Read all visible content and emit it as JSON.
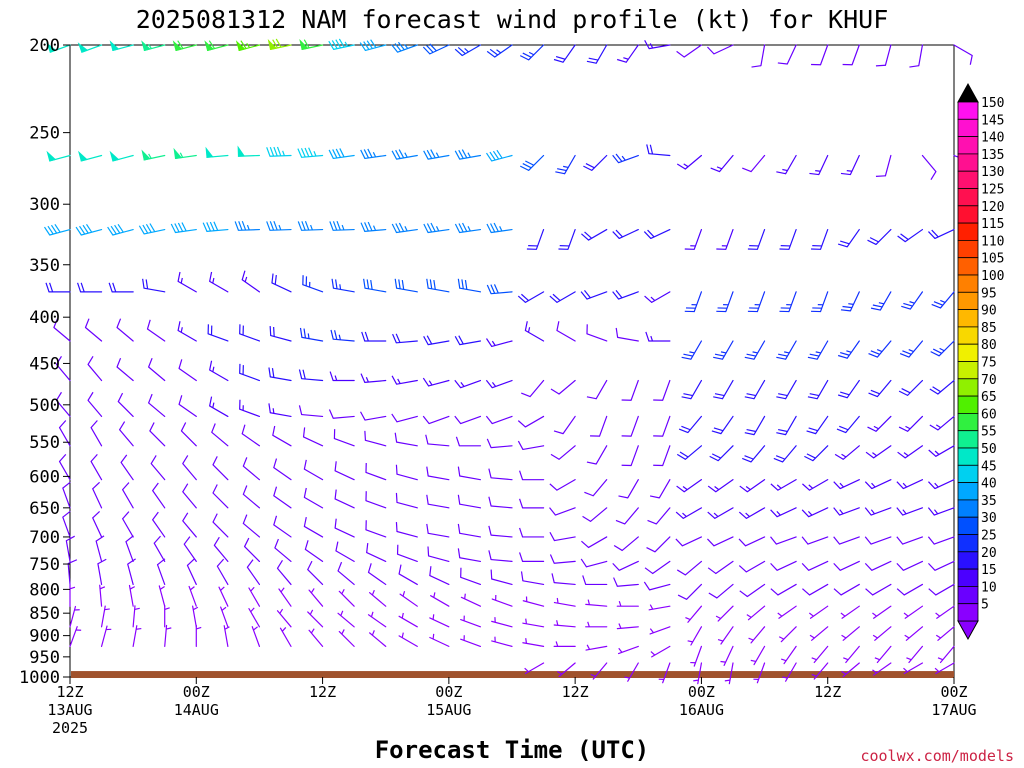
{
  "title": "2025081312 NAM forecast wind profile (kt) for KHUF",
  "credit": "coolwx.com/models",
  "chart_data": {
    "type": "wind-barb-timeheight",
    "title": "2025081312 NAM forecast wind profile (kt) for KHUF",
    "xlabel": "Forecast Time (UTC)",
    "ylabel": "",
    "units": "kt",
    "y_ticks": [
      200,
      250,
      300,
      350,
      400,
      450,
      500,
      550,
      600,
      650,
      700,
      750,
      800,
      850,
      900,
      950,
      1000
    ],
    "ylim": [
      1000,
      200
    ],
    "x_ticks": [
      {
        "hour": 0,
        "lines": [
          "12Z",
          "13AUG",
          "2025"
        ]
      },
      {
        "hour": 12,
        "lines": [
          "00Z",
          "14AUG"
        ]
      },
      {
        "hour": 24,
        "lines": [
          "12Z"
        ]
      },
      {
        "hour": 36,
        "lines": [
          "00Z",
          "15AUG"
        ]
      },
      {
        "hour": 48,
        "lines": [
          "12Z"
        ]
      },
      {
        "hour": 60,
        "lines": [
          "00Z",
          "16AUG"
        ]
      },
      {
        "hour": 72,
        "lines": [
          "12Z"
        ]
      },
      {
        "hour": 84,
        "lines": [
          "00Z",
          "17AUG"
        ]
      }
    ],
    "xlim": [
      0,
      84
    ],
    "time_step_hours": 3,
    "colorbar": {
      "levels": [
        5,
        10,
        15,
        20,
        25,
        30,
        35,
        40,
        45,
        50,
        55,
        60,
        65,
        70,
        75,
        80,
        85,
        90,
        95,
        100,
        105,
        110,
        115,
        120,
        125,
        130,
        135,
        140,
        145,
        150
      ],
      "colors": [
        "#8a00ff",
        "#6a00ff",
        "#4b00ff",
        "#2a10ff",
        "#1030ff",
        "#0050ff",
        "#0080ff",
        "#00a8ff",
        "#00d0f0",
        "#00e8c8",
        "#10f090",
        "#30f040",
        "#50f000",
        "#90f000",
        "#c8f000",
        "#f0f000",
        "#f8d800",
        "#ffb800",
        "#ff9800",
        "#ff8000",
        "#ff6000",
        "#ff4000",
        "#ff2000",
        "#ff1030",
        "#ff1050",
        "#ff1070",
        "#ff1090",
        "#ff10b0",
        "#ff10d0",
        "#ff10f0"
      ]
    },
    "surface_color": "#a0522d",
    "levels": [
      {
        "p": 200,
        "speeds": [
          49,
          50,
          52,
          55,
          58,
          62,
          66,
          72,
          62,
          45,
          40,
          34,
          30,
          26,
          24,
          23,
          20,
          18,
          17,
          14,
          12,
          12,
          11,
          10,
          10,
          9,
          9,
          8,
          8
        ],
        "dirs": [
          250,
          250,
          255,
          255,
          255,
          255,
          255,
          258,
          258,
          258,
          255,
          250,
          245,
          240,
          235,
          225,
          215,
          210,
          215,
          260,
          235,
          245,
          190,
          205,
          200,
          200,
          195,
          190,
          120
        ]
      },
      {
        "p": 265,
        "speeds": [
          50,
          51,
          52,
          53,
          53,
          51,
          49,
          47,
          43,
          40,
          37,
          35,
          34,
          33,
          40,
          30,
          26,
          22,
          24,
          20,
          15,
          13,
          12,
          15,
          14,
          14,
          12,
          10,
          10
        ],
        "dirs": [
          255,
          255,
          255,
          258,
          262,
          265,
          268,
          268,
          265,
          262,
          262,
          260,
          260,
          260,
          255,
          225,
          210,
          225,
          250,
          275,
          230,
          220,
          220,
          210,
          205,
          205,
          195,
          140,
          110
        ]
      },
      {
        "p": 320,
        "speeds": [
          40,
          41,
          42,
          42,
          40,
          38,
          36,
          35,
          34,
          34,
          34,
          34,
          33,
          33,
          33,
          22,
          22,
          20,
          18,
          18,
          16,
          16,
          18,
          18,
          18,
          20,
          20,
          20,
          20
        ],
        "dirs": [
          255,
          255,
          255,
          258,
          262,
          265,
          268,
          268,
          268,
          268,
          265,
          262,
          262,
          262,
          262,
          200,
          200,
          240,
          245,
          245,
          200,
          200,
          200,
          200,
          200,
          215,
          225,
          235,
          245
        ]
      },
      {
        "p": 375,
        "speeds": [
          20,
          21,
          20,
          18,
          17,
          16,
          16,
          20,
          24,
          26,
          28,
          28,
          30,
          30,
          28,
          18,
          20,
          18,
          18,
          16,
          24,
          25,
          25,
          25,
          25,
          25,
          25,
          25,
          25
        ],
        "dirs": [
          270,
          270,
          270,
          280,
          300,
          300,
          305,
          295,
          290,
          280,
          280,
          280,
          280,
          280,
          265,
          240,
          240,
          250,
          250,
          240,
          200,
          200,
          200,
          200,
          200,
          205,
          210,
          215,
          220
        ]
      },
      {
        "p": 425,
        "speeds": [
          12,
          12,
          12,
          12,
          14,
          18,
          20,
          22,
          24,
          24,
          22,
          20,
          20,
          20,
          16,
          14,
          12,
          12,
          12,
          14,
          24,
          25,
          25,
          25,
          25,
          25,
          25,
          25,
          25
        ],
        "dirs": [
          310,
          310,
          310,
          305,
          300,
          290,
          290,
          285,
          280,
          275,
          270,
          265,
          260,
          260,
          255,
          300,
          300,
          290,
          280,
          270,
          210,
          210,
          210,
          210,
          210,
          215,
          220,
          220,
          225
        ]
      },
      {
        "p": 470,
        "speeds": [
          10,
          10,
          11,
          11,
          12,
          15,
          18,
          18,
          18,
          16,
          14,
          14,
          14,
          16,
          14,
          12,
          12,
          10,
          10,
          10,
          22,
          22,
          22,
          22,
          22,
          22,
          20,
          18,
          18
        ],
        "dirs": [
          320,
          320,
          310,
          310,
          305,
          300,
          290,
          280,
          275,
          270,
          265,
          260,
          255,
          250,
          250,
          220,
          230,
          210,
          200,
          200,
          210,
          210,
          210,
          210,
          210,
          215,
          220,
          225,
          230
        ]
      },
      {
        "p": 515,
        "speeds": [
          10,
          10,
          10,
          11,
          12,
          14,
          14,
          14,
          12,
          12,
          10,
          10,
          10,
          10,
          12,
          12,
          10,
          8,
          8,
          10,
          20,
          20,
          20,
          20,
          20,
          18,
          16,
          16,
          16
        ],
        "dirs": [
          320,
          320,
          315,
          310,
          305,
          300,
          290,
          280,
          275,
          265,
          260,
          255,
          250,
          250,
          250,
          240,
          215,
          200,
          200,
          200,
          220,
          215,
          210,
          210,
          215,
          220,
          225,
          225,
          230
        ]
      },
      {
        "p": 555,
        "speeds": [
          10,
          10,
          10,
          10,
          10,
          10,
          10,
          10,
          10,
          10,
          10,
          10,
          10,
          10,
          10,
          10,
          8,
          8,
          8,
          8,
          18,
          18,
          18,
          18,
          18,
          16,
          16,
          16,
          15
        ],
        "dirs": [
          330,
          330,
          320,
          315,
          315,
          310,
          305,
          300,
          295,
          290,
          285,
          280,
          275,
          270,
          265,
          260,
          230,
          210,
          200,
          200,
          230,
          225,
          220,
          220,
          225,
          230,
          235,
          235,
          240
        ]
      },
      {
        "p": 605,
        "speeds": [
          10,
          10,
          10,
          10,
          10,
          10,
          10,
          10,
          9,
          9,
          9,
          9,
          9,
          9,
          9,
          9,
          8,
          8,
          8,
          8,
          15,
          15,
          15,
          16,
          16,
          15,
          15,
          15,
          15
        ],
        "dirs": [
          330,
          330,
          325,
          320,
          320,
          315,
          310,
          305,
          300,
          295,
          290,
          285,
          280,
          280,
          275,
          270,
          240,
          220,
          210,
          210,
          235,
          235,
          235,
          240,
          240,
          245,
          245,
          245,
          245
        ]
      },
      {
        "p": 650,
        "speeds": [
          10,
          10,
          10,
          10,
          10,
          10,
          10,
          10,
          9,
          9,
          9,
          9,
          9,
          9,
          9,
          9,
          8,
          8,
          8,
          8,
          14,
          14,
          14,
          14,
          14,
          14,
          13,
          13,
          13
        ],
        "dirs": [
          340,
          335,
          330,
          325,
          320,
          315,
          310,
          305,
          300,
          295,
          290,
          285,
          280,
          280,
          275,
          270,
          250,
          230,
          220,
          220,
          240,
          240,
          240,
          245,
          245,
          250,
          250,
          250,
          250
        ]
      },
      {
        "p": 700,
        "speeds": [
          10,
          10,
          10,
          10,
          10,
          10,
          10,
          10,
          10,
          9,
          9,
          9,
          9,
          9,
          9,
          9,
          8,
          8,
          8,
          8,
          12,
          12,
          12,
          12,
          12,
          12,
          12,
          12,
          12
        ],
        "dirs": [
          340,
          335,
          330,
          325,
          320,
          315,
          310,
          305,
          300,
          295,
          290,
          285,
          280,
          280,
          275,
          270,
          260,
          240,
          230,
          225,
          245,
          245,
          245,
          250,
          250,
          250,
          250,
          250,
          250
        ]
      },
      {
        "p": 745,
        "speeds": [
          9,
          9,
          9,
          9,
          9,
          9,
          9,
          9,
          9,
          9,
          9,
          9,
          9,
          9,
          9,
          9,
          8,
          8,
          8,
          8,
          10,
          10,
          10,
          10,
          10,
          10,
          10,
          10,
          10
        ],
        "dirs": [
          350,
          345,
          340,
          330,
          325,
          320,
          315,
          310,
          305,
          300,
          295,
          290,
          285,
          280,
          275,
          270,
          265,
          255,
          245,
          235,
          230,
          235,
          240,
          245,
          245,
          245,
          245,
          245,
          245
        ]
      },
      {
        "p": 790,
        "speeds": [
          8,
          8,
          8,
          8,
          8,
          8,
          8,
          8,
          8,
          8,
          8,
          8,
          8,
          8,
          8,
          8,
          8,
          8,
          8,
          8,
          8,
          8,
          8,
          8,
          8,
          8,
          8,
          8,
          8
        ],
        "dirs": [
          355,
          350,
          345,
          340,
          335,
          330,
          325,
          320,
          315,
          310,
          305,
          300,
          295,
          290,
          285,
          280,
          275,
          270,
          265,
          255,
          225,
          230,
          235,
          240,
          240,
          240,
          240,
          240,
          240
        ]
      },
      {
        "p": 835,
        "speeds": [
          7,
          7,
          7,
          7,
          7,
          7,
          7,
          7,
          7,
          7,
          7,
          7,
          7,
          7,
          7,
          7,
          7,
          7,
          7,
          7,
          7,
          7,
          7,
          7,
          7,
          7,
          7,
          7,
          7
        ],
        "dirs": [
          0,
          355,
          350,
          345,
          340,
          335,
          330,
          325,
          320,
          315,
          310,
          305,
          300,
          295,
          290,
          285,
          280,
          275,
          270,
          260,
          220,
          225,
          230,
          235,
          235,
          235,
          235,
          235,
          235
        ]
      },
      {
        "p": 880,
        "speeds": [
          6,
          6,
          6,
          6,
          6,
          6,
          6,
          6,
          6,
          6,
          6,
          6,
          6,
          6,
          6,
          6,
          6,
          6,
          6,
          6,
          6,
          6,
          6,
          6,
          6,
          6,
          6,
          6,
          6
        ],
        "dirs": [
          15,
          10,
          5,
          0,
          350,
          340,
          330,
          320,
          315,
          310,
          305,
          300,
          295,
          290,
          285,
          280,
          275,
          270,
          265,
          250,
          210,
          215,
          220,
          225,
          230,
          230,
          230,
          230,
          230
        ]
      },
      {
        "p": 925,
        "speeds": [
          6,
          6,
          6,
          6,
          6,
          6,
          6,
          6,
          6,
          6,
          6,
          6,
          6,
          6,
          6,
          6,
          6,
          6,
          6,
          6,
          6,
          6,
          6,
          6,
          6,
          6,
          6,
          6,
          6
        ],
        "dirs": [
          20,
          15,
          10,
          5,
          0,
          350,
          340,
          330,
          320,
          315,
          310,
          300,
          295,
          290,
          285,
          280,
          270,
          260,
          250,
          240,
          200,
          205,
          210,
          215,
          220,
          220,
          220,
          220,
          220
        ]
      },
      {
        "p": 965,
        "speeds": [
          null,
          null,
          null,
          null,
          null,
          null,
          null,
          null,
          null,
          null,
          null,
          null,
          null,
          null,
          null,
          6,
          6,
          6,
          6,
          6,
          6,
          6,
          6,
          6,
          6,
          6,
          6,
          6,
          6
        ],
        "dirs": [
          0,
          0,
          0,
          0,
          0,
          0,
          0,
          0,
          0,
          0,
          0,
          0,
          0,
          0,
          0,
          240,
          230,
          220,
          210,
          200,
          190,
          190,
          200,
          210,
          220,
          230,
          235,
          240,
          240
        ]
      }
    ]
  }
}
